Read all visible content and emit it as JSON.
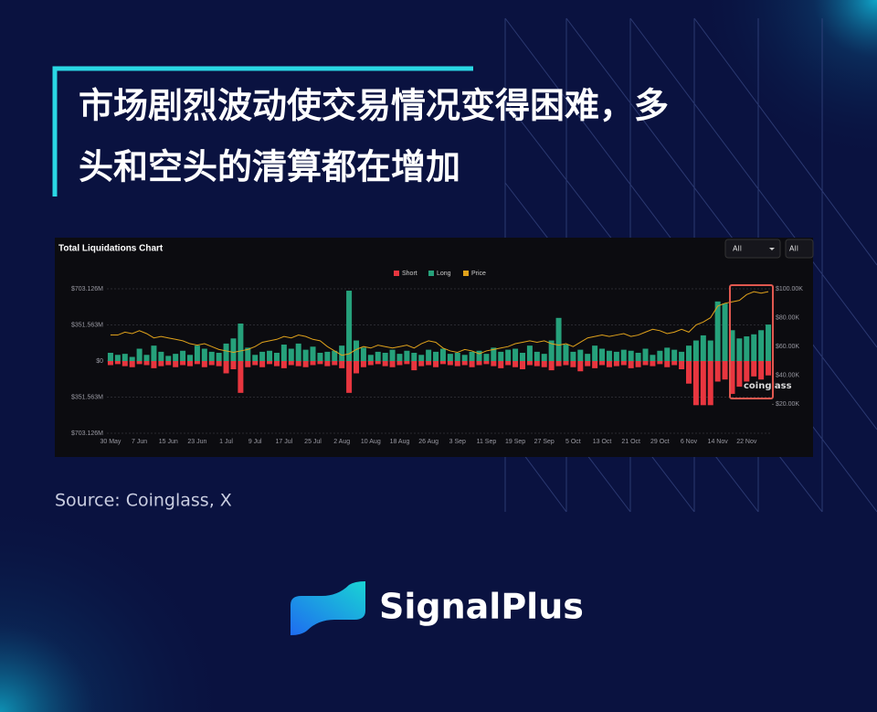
{
  "title": [
    "市场剧烈波动使交易情况变得困难，多",
    "头和空头的清算都在增加"
  ],
  "chart_data": {
    "type": "bar",
    "title": "Total Liquidations Chart",
    "filters": [
      "All",
      "All"
    ],
    "watermark": "coinglass",
    "legend": "top",
    "grid": true,
    "categories": [
      "30 May",
      null,
      null,
      null,
      "7 Jun",
      null,
      null,
      null,
      "15 Jun",
      null,
      null,
      null,
      "23 Jun",
      null,
      null,
      null,
      "1 Jul",
      null,
      null,
      null,
      "9 Jul",
      null,
      null,
      null,
      "17 Jul",
      null,
      null,
      null,
      "25 Jul",
      null,
      null,
      null,
      "2 Aug",
      null,
      null,
      null,
      "10 Aug",
      null,
      null,
      null,
      "18 Aug",
      null,
      null,
      null,
      "26 Aug",
      null,
      null,
      null,
      "3 Sep",
      null,
      null,
      null,
      "11 Sep",
      null,
      null,
      null,
      "19 Sep",
      null,
      null,
      null,
      "27 Sep",
      null,
      null,
      null,
      "5 Oct",
      null,
      null,
      null,
      "13 Oct",
      null,
      null,
      null,
      "21 Oct",
      null,
      null,
      null,
      "29 Oct",
      null,
      null,
      null,
      "6 Nov",
      null,
      null,
      null,
      "14 Nov",
      null,
      null,
      null,
      "22 Nov",
      null,
      null,
      null
    ],
    "series": [
      {
        "name": "Short",
        "color": "#e8363f",
        "values": [
          -40,
          -30,
          -50,
          -60,
          -30,
          -40,
          -70,
          -50,
          -40,
          -60,
          -40,
          -50,
          -30,
          -60,
          -40,
          -50,
          -120,
          -80,
          -310,
          -60,
          -40,
          -60,
          -30,
          -50,
          -70,
          -40,
          -50,
          -60,
          -40,
          -30,
          -50,
          -40,
          -70,
          -310,
          -120,
          -60,
          -40,
          -30,
          -50,
          -60,
          -40,
          -30,
          -90,
          -50,
          -40,
          -60,
          -30,
          -40,
          -50,
          -40,
          -60,
          -40,
          -30,
          -50,
          -70,
          -40,
          -60,
          -80,
          -40,
          -50,
          -60,
          -90,
          -50,
          -40,
          -60,
          -100,
          -50,
          -70,
          -40,
          -60,
          -50,
          -40,
          -70,
          -60,
          -40,
          -50,
          -30,
          -60,
          -40,
          -80,
          -220,
          -430,
          -430,
          -430,
          -200,
          -180,
          -320,
          -250,
          -200,
          -150,
          -180,
          -140
        ]
      },
      {
        "name": "Long",
        "color": "#26a17b",
        "values": [
          80,
          60,
          70,
          40,
          120,
          60,
          150,
          90,
          50,
          70,
          100,
          60,
          150,
          120,
          90,
          80,
          170,
          220,
          365,
          130,
          60,
          90,
          100,
          80,
          160,
          120,
          170,
          110,
          140,
          80,
          90,
          100,
          150,
          685,
          200,
          130,
          60,
          90,
          80,
          110,
          70,
          100,
          80,
          60,
          110,
          90,
          120,
          70,
          80,
          60,
          90,
          100,
          70,
          130,
          90,
          110,
          120,
          80,
          150,
          90,
          70,
          200,
          420,
          160,
          90,
          110,
          70,
          150,
          120,
          100,
          90,
          110,
          100,
          80,
          120,
          60,
          100,
          130,
          110,
          90,
          150,
          200,
          250,
          200,
          580,
          560,
          300,
          220,
          240,
          260,
          300,
          355
        ]
      },
      {
        "name": "Price",
        "color": "#e0a21b",
        "type": "line",
        "axis": "y2",
        "values": [
          68,
          68,
          70,
          69,
          71,
          69,
          66,
          67,
          66,
          65,
          64,
          62,
          61,
          62,
          60,
          58,
          57,
          56,
          57,
          58,
          60,
          63,
          64,
          65,
          67,
          66,
          68,
          67,
          65,
          64,
          60,
          57,
          54,
          55,
          58,
          60,
          59,
          61,
          60,
          59,
          60,
          61,
          59,
          62,
          64,
          63,
          59,
          57,
          56,
          58,
          57,
          55,
          57,
          58,
          59,
          60,
          62,
          63,
          64,
          63,
          64,
          62,
          61,
          62,
          60,
          63,
          66,
          67,
          68,
          67,
          68,
          69,
          67,
          68,
          70,
          72,
          71,
          69,
          70,
          72,
          70,
          75,
          77,
          80,
          88,
          90,
          91,
          92,
          96,
          98,
          97,
          98
        ]
      }
    ],
    "ylim": [
      -703.126,
      703.126
    ],
    "yticks": [
      {
        "value": -703.126,
        "label": "$703.126M"
      },
      {
        "value": -351.563,
        "label": "$351.563M"
      },
      {
        "value": 0,
        "label": "$0"
      },
      {
        "value": 351.563,
        "label": "$351.563M"
      },
      {
        "value": 703.126,
        "label": "$703.126M"
      }
    ],
    "y2lim": [
      0,
      100
    ],
    "y2ticks": [
      {
        "value": 20,
        "label": "$20.00K"
      },
      {
        "value": 40,
        "label": "$40.00K"
      },
      {
        "value": 60,
        "label": "$60.00K"
      },
      {
        "value": 80,
        "label": "$80.00K"
      },
      {
        "value": 100,
        "label": "$100.00K"
      }
    ]
  },
  "source": "Source: Coinglass, X",
  "brand": "SignalPlus"
}
